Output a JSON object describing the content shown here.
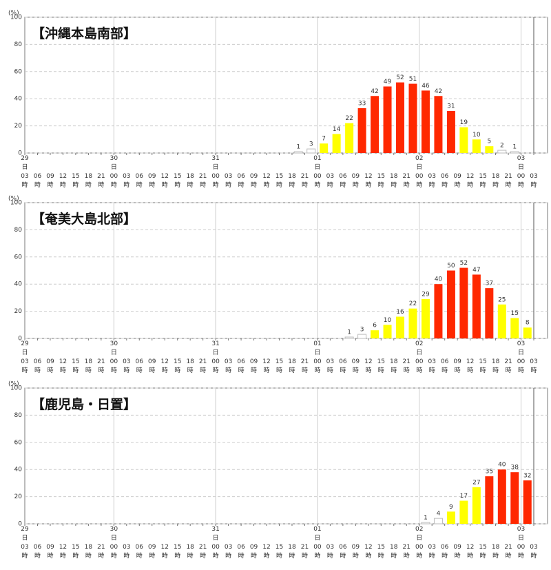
{
  "chart_data": [
    {
      "type": "bar",
      "title": "【沖縄本島南部】",
      "y_unit": "(%)",
      "ylim": [
        0,
        100
      ],
      "yticks": [
        0,
        20,
        40,
        60,
        80,
        100
      ],
      "grid": true,
      "categories": [
        "29日03時",
        "06時",
        "09時",
        "12時",
        "15時",
        "18時",
        "21時",
        "30日00時",
        "03時",
        "06時",
        "09時",
        "12時",
        "15時",
        "18時",
        "21時",
        "31日00時",
        "03時",
        "06時",
        "09時",
        "12時",
        "15時",
        "18時",
        "21時",
        "01日00時",
        "03時",
        "06時",
        "09時",
        "12時",
        "15時",
        "18時",
        "21時",
        "02日00時",
        "03時",
        "06時",
        "09時",
        "12時",
        "15時",
        "18時",
        "21時",
        "03日00時",
        "03時"
      ],
      "values": [
        null,
        null,
        null,
        null,
        null,
        null,
        null,
        null,
        null,
        null,
        null,
        null,
        null,
        null,
        null,
        null,
        null,
        null,
        null,
        null,
        null,
        null,
        1,
        3,
        7,
        14,
        22,
        33,
        42,
        49,
        52,
        51,
        46,
        42,
        31,
        19,
        10,
        5,
        2,
        1,
        null
      ],
      "colors": [
        null,
        null,
        null,
        null,
        null,
        null,
        null,
        null,
        null,
        null,
        null,
        null,
        null,
        null,
        null,
        null,
        null,
        null,
        null,
        null,
        null,
        null,
        "#ffffff",
        "#ffffff",
        "#ffff00",
        "#ffff00",
        "#ffff00",
        "#ff2800",
        "#ff2800",
        "#ff2800",
        "#ff2800",
        "#ff2800",
        "#ff2800",
        "#ff2800",
        "#ff2800",
        "#ffff00",
        "#ffff00",
        "#ffff00",
        "#ffffff",
        "#ffffff",
        null
      ]
    },
    {
      "type": "bar",
      "title": "【奄美大島北部】",
      "y_unit": "(%)",
      "ylim": [
        0,
        100
      ],
      "yticks": [
        0,
        20,
        40,
        60,
        80,
        100
      ],
      "grid": true,
      "categories": [
        "29日03時",
        "06時",
        "09時",
        "12時",
        "15時",
        "18時",
        "21時",
        "30日00時",
        "03時",
        "06時",
        "09時",
        "12時",
        "15時",
        "18時",
        "21時",
        "31日00時",
        "03時",
        "06時",
        "09時",
        "12時",
        "15時",
        "18時",
        "21時",
        "01日00時",
        "03時",
        "06時",
        "09時",
        "12時",
        "15時",
        "18時",
        "21時",
        "02日00時",
        "03時",
        "06時",
        "09時",
        "12時",
        "15時",
        "18時",
        "21時",
        "03日00時",
        "03時"
      ],
      "values": [
        null,
        null,
        null,
        null,
        null,
        null,
        null,
        null,
        null,
        null,
        null,
        null,
        null,
        null,
        null,
        null,
        null,
        null,
        null,
        null,
        null,
        null,
        null,
        null,
        null,
        null,
        1,
        3,
        6,
        10,
        16,
        22,
        29,
        40,
        50,
        52,
        47,
        37,
        25,
        15,
        8
      ],
      "colors": [
        null,
        null,
        null,
        null,
        null,
        null,
        null,
        null,
        null,
        null,
        null,
        null,
        null,
        null,
        null,
        null,
        null,
        null,
        null,
        null,
        null,
        null,
        null,
        null,
        null,
        null,
        "#ffffff",
        "#ffffff",
        "#ffff00",
        "#ffff00",
        "#ffff00",
        "#ffff00",
        "#ffff00",
        "#ff2800",
        "#ff2800",
        "#ff2800",
        "#ff2800",
        "#ff2800",
        "#ffff00",
        "#ffff00",
        "#ffff00"
      ]
    },
    {
      "type": "bar",
      "title": "【鹿児島・日置】",
      "y_unit": "(%)",
      "ylim": [
        0,
        100
      ],
      "yticks": [
        0,
        20,
        40,
        60,
        80,
        100
      ],
      "grid": true,
      "categories": [
        "29日03時",
        "06時",
        "09時",
        "12時",
        "15時",
        "18時",
        "21時",
        "30日00時",
        "03時",
        "06時",
        "09時",
        "12時",
        "15時",
        "18時",
        "21時",
        "31日00時",
        "03時",
        "06時",
        "09時",
        "12時",
        "15時",
        "18時",
        "21時",
        "01日00時",
        "03時",
        "06時",
        "09時",
        "12時",
        "15時",
        "18時",
        "21時",
        "02日00時",
        "03時",
        "06時",
        "09時",
        "12時",
        "15時",
        "18時",
        "21時",
        "03日00時",
        "03時"
      ],
      "values": [
        null,
        null,
        null,
        null,
        null,
        null,
        null,
        null,
        null,
        null,
        null,
        null,
        null,
        null,
        null,
        null,
        null,
        null,
        null,
        null,
        null,
        null,
        null,
        null,
        null,
        null,
        null,
        null,
        null,
        null,
        null,
        null,
        1,
        4,
        9,
        17,
        27,
        35,
        40,
        38,
        32
      ],
      "colors": [
        null,
        null,
        null,
        null,
        null,
        null,
        null,
        null,
        null,
        null,
        null,
        null,
        null,
        null,
        null,
        null,
        null,
        null,
        null,
        null,
        null,
        null,
        null,
        null,
        null,
        null,
        null,
        null,
        null,
        null,
        null,
        null,
        "#ffffff",
        "#ffffff",
        "#ffff00",
        "#ffff00",
        "#ffff00",
        "#ff2800",
        "#ff2800",
        "#ff2800",
        "#ff2800"
      ]
    }
  ]
}
